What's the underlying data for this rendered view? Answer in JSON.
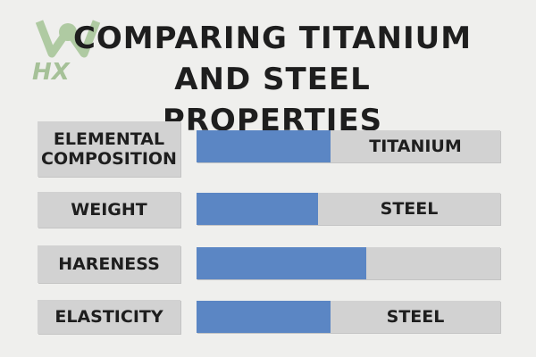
{
  "watermark": {
    "text": "HX",
    "icon": "watermark-logo-icon",
    "color": "#9fbd8f"
  },
  "title": {
    "line1": "COMPARING TITANIUM",
    "line2": "AND STEEL PROPERTIES"
  },
  "colors": {
    "bar_fill": "#5b86c4",
    "track": "#d2d2d2",
    "background": "#efefed"
  },
  "chart_data": {
    "type": "bar",
    "orientation": "horizontal",
    "title": "COMPARING TITANIUM AND STEEL PROPERTIES",
    "categories": [
      "ELEMENTAL COMPOSITION",
      "WEIGHT",
      "HARENESS",
      "ELASTICITY"
    ],
    "values": [
      0.44,
      0.4,
      0.56,
      0.44
    ],
    "value_scale": "fraction of bar track",
    "bar_labels": [
      "TITANIUM",
      "STEEL",
      "",
      "STEEL"
    ],
    "grid": false,
    "legend": "none"
  }
}
